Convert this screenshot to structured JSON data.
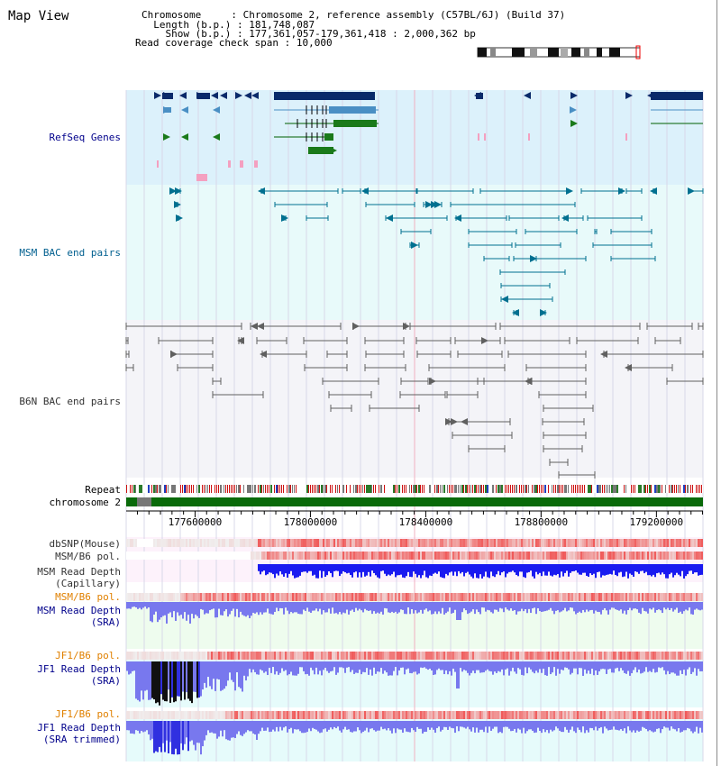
{
  "view_title": "Map View",
  "chrom_info": {
    "chromosome_key": "Chromosome",
    "chromosome_value": "Chromosome 2, reference assembly (C57BL/6J) (Build 37)",
    "length_key": "Length (b.p.)",
    "length_value": "181,748,087",
    "show_key": "Show (b.p.)",
    "show_value": "177,361,057-179,361,418 : 2,000,362 bp",
    "span_key": "Read coverage check span",
    "span_value": "10,000"
  },
  "tracks": {
    "refseq": {
      "label": "RefSeq Genes",
      "color": "#00008b",
      "bg": "#dcf1fb"
    },
    "msm_bac": {
      "label": "MSM BAC end pairs",
      "color": "#005f8f",
      "bg": "#e8fafa"
    },
    "b6n_bac": {
      "label": "B6N BAC end pairs",
      "color": "#333333",
      "bg": "#f4f4f8"
    },
    "repeat": {
      "label": "Repeat"
    },
    "chromosome": {
      "label": "chromosome 2"
    },
    "dbsnp": {
      "label": "dbSNP(Mouse)"
    },
    "msm_b6_pol_1": {
      "label": "MSM/B6 pol."
    },
    "msm_depth_cap": {
      "label_line1": "MSM Read Depth",
      "label_line2": "(Capillary)"
    },
    "msm_b6_pol_2": {
      "label": "MSM/B6 pol."
    },
    "msm_depth_sra": {
      "label_line1": "MSM Read Depth",
      "label_line2": "(SRA)"
    },
    "jf1_b6_pol_1": {
      "label": "JF1/B6 pol."
    },
    "jf1_depth_sra": {
      "label_line1": "JF1 Read Depth",
      "label_line2": "(SRA)"
    },
    "jf1_b6_pol_2": {
      "label": "JF1/B6 pol."
    },
    "jf1_depth_trim": {
      "label_line1": "JF1 Read Depth",
      "label_line2": "(SRA trimmed)"
    }
  },
  "axis": {
    "start_bp": 177361057,
    "end_bp": 179361418,
    "ticks": [
      "177600000",
      "178000000",
      "178400000",
      "178800000",
      "179200000"
    ]
  },
  "colors": {
    "gene_dark": "#0a2a6a",
    "gene_mid": "#4a8fc4",
    "gene_green": "#1a7a1a",
    "pink": "#f4a0c0",
    "repeat_red": "#cc1111",
    "chrom_green": "#0a6a0a",
    "depth_blue": "#1a1af0",
    "depth_light": "#7878ee"
  }
}
